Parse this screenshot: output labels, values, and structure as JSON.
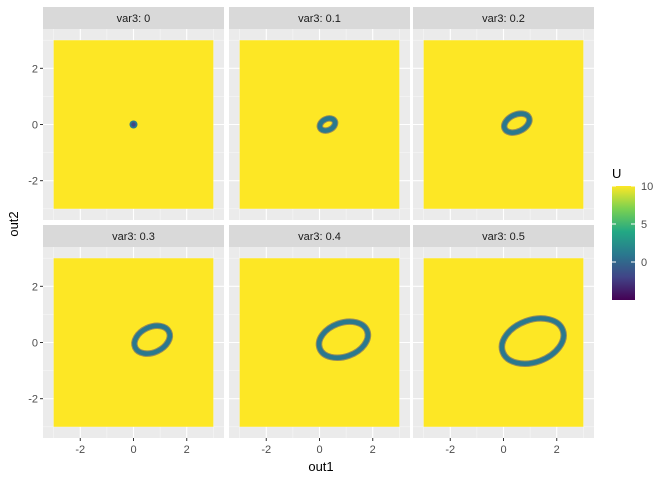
{
  "chart_data": {
    "type": "heatmap",
    "facet_label_prefix": "var3: ",
    "facets": [
      {
        "label": "var3: 0",
        "var3": 0,
        "ellipse": null
      },
      {
        "label": "var3: 0.1",
        "var3": 0.1,
        "ellipse": {
          "cx": 0.3,
          "cy": 0.0,
          "rx": 0.3,
          "ry": 0.2,
          "rot": -25
        }
      },
      {
        "label": "var3: 0.2",
        "var3": 0.2,
        "ellipse": {
          "cx": 0.5,
          "cy": 0.05,
          "rx": 0.5,
          "ry": 0.3,
          "rot": -25
        }
      },
      {
        "label": "var3: 0.3",
        "var3": 0.3,
        "ellipse": {
          "cx": 0.7,
          "cy": 0.1,
          "rx": 0.7,
          "ry": 0.45,
          "rot": -25
        }
      },
      {
        "label": "var3: 0.4",
        "var3": 0.4,
        "ellipse": {
          "cx": 0.9,
          "cy": 0.1,
          "rx": 0.95,
          "ry": 0.6,
          "rot": -20
        }
      },
      {
        "label": "var3: 0.5",
        "var3": 0.5,
        "ellipse": {
          "cx": 1.1,
          "cy": 0.05,
          "rx": 1.2,
          "ry": 0.75,
          "rot": -20
        }
      }
    ],
    "xlabel": "out1",
    "ylabel": "out2",
    "x_ticks": [
      -2,
      0,
      2
    ],
    "y_ticks": [
      -2,
      0,
      2
    ],
    "xlim": [
      -3.4,
      3.4
    ],
    "ylim": [
      -3.4,
      3.4
    ],
    "tile_extent": [
      -3,
      3
    ],
    "fill_value": 10,
    "ring_value": 0,
    "center_dot": {
      "x": 0,
      "y": 0,
      "value": -4
    },
    "legend": {
      "title": "U",
      "ticks": [
        10,
        5,
        0
      ],
      "range": [
        -5,
        10
      ],
      "placement": "right",
      "colors": [
        "#440154",
        "#414487",
        "#2A788E",
        "#22A884",
        "#7AD151",
        "#FDE725"
      ]
    },
    "grid": true,
    "colors": {
      "fill": "#FDE725",
      "ring": "#2A788E",
      "ring_edge": "#414487",
      "panel_bg": "#EBEBEB",
      "strip_bg": "#D9D9D9"
    }
  }
}
